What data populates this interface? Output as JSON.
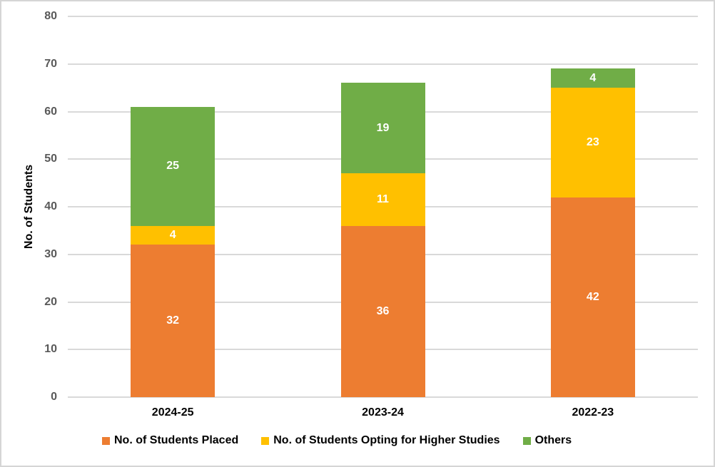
{
  "chart_data": {
    "type": "bar",
    "stacked": true,
    "title": "",
    "xlabel": "",
    "ylabel": "No. of Students",
    "ylim": [
      0,
      80
    ],
    "yticks": [
      0,
      10,
      20,
      30,
      40,
      50,
      60,
      70,
      80
    ],
    "grid": true,
    "legend_position": "bottom",
    "bar_value_labels": true,
    "categories": [
      "2024-25",
      "2023-24",
      "2022-23"
    ],
    "series": [
      {
        "name": "No. of Students Placed",
        "color": "#ED7D31",
        "values": [
          32,
          36,
          42
        ]
      },
      {
        "name": "No. of Students Opting for Higher Studies",
        "color": "#FFC000",
        "values": [
          4,
          11,
          23
        ]
      },
      {
        "name": "Others",
        "color": "#70AD47",
        "values": [
          25,
          19,
          4
        ]
      }
    ]
  },
  "style": {
    "bar_label_color": "#FFFFFF",
    "grid_color": "#D9D9D9",
    "tick_label_color": "#595959",
    "axis_title_color": "#000000",
    "frame_border_color": "#D5D5D5",
    "background": "#FFFFFF"
  }
}
